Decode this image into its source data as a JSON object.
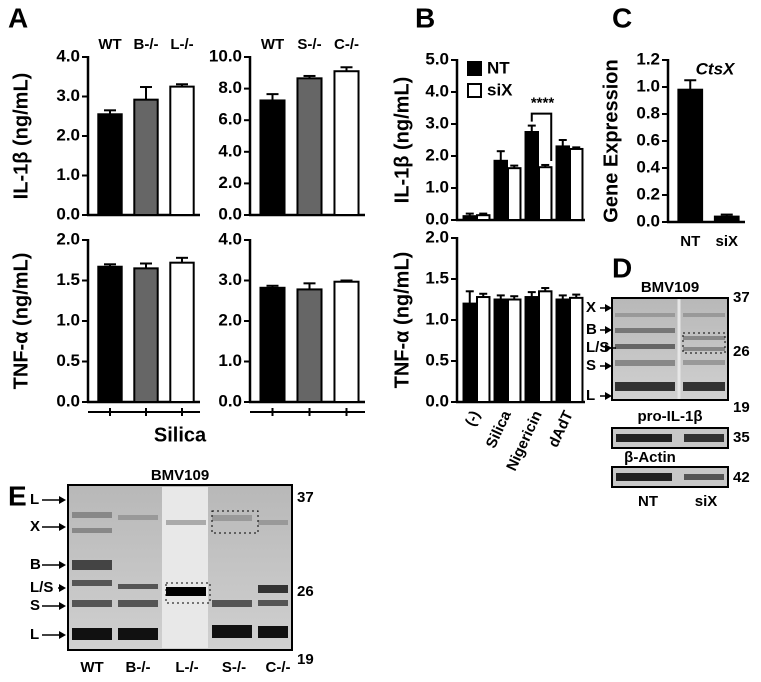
{
  "panels": [
    "A",
    "B",
    "C",
    "D",
    "E"
  ],
  "silica_label": "Silica",
  "chart_data": [
    {
      "type": "bar",
      "ylabel": "IL-1β (ng/mL)",
      "categories": [
        "WT",
        "B-/-",
        "L-/-"
      ],
      "values": [
        2.55,
        2.92,
        3.25
      ],
      "errors": [
        0.1,
        0.32,
        0.06
      ],
      "colors": [
        "#000000",
        "#666666",
        "#ffffff"
      ],
      "ylim": [
        0,
        4
      ],
      "yticks": [
        {
          "value": 0,
          "label": "0.0"
        },
        {
          "value": 1,
          "label": "1.0"
        },
        {
          "value": 2,
          "label": "2.0"
        },
        {
          "value": 3,
          "label": "3.0"
        },
        {
          "value": 4,
          "label": "4.0"
        }
      ]
    },
    {
      "type": "bar",
      "categories": [
        "WT",
        "S-/-",
        "C-/-"
      ],
      "values": [
        7.25,
        8.65,
        9.1
      ],
      "errors": [
        0.4,
        0.15,
        0.25
      ],
      "colors": [
        "#000000",
        "#666666",
        "#ffffff"
      ],
      "ylim": [
        0,
        10
      ],
      "yticks": [
        {
          "value": 0,
          "label": "0.0"
        },
        {
          "value": 2,
          "label": "2.0"
        },
        {
          "value": 4,
          "label": "4.0"
        },
        {
          "value": 6,
          "label": "6.0"
        },
        {
          "value": 8,
          "label": "8.0"
        },
        {
          "value": 10,
          "label": "10.0"
        }
      ]
    },
    {
      "type": "bar",
      "ylabel": "TNF-α (ng/mL)",
      "categories": [
        null,
        null,
        null
      ],
      "values": [
        1.67,
        1.65,
        1.72
      ],
      "errors": [
        0.03,
        0.06,
        0.06
      ],
      "colors": [
        "#000000",
        "#666666",
        "#ffffff"
      ],
      "ylim": [
        0,
        2
      ],
      "yticks": [
        {
          "value": 0,
          "label": "0.0"
        },
        0.5,
        {
          "value": 1,
          "label": "1.0"
        },
        1.5,
        {
          "value": 2,
          "label": "2.0"
        }
      ]
    },
    {
      "type": "bar",
      "categories": [
        null,
        null,
        null
      ],
      "values": [
        2.82,
        2.78,
        2.97
      ],
      "errors": [
        0.05,
        0.15,
        0.03
      ],
      "colors": [
        "#000000",
        "#666666",
        "#ffffff"
      ],
      "ylim": [
        0,
        4
      ],
      "yticks": [
        {
          "value": 0,
          "label": "0.0"
        },
        {
          "value": 1,
          "label": "1.0"
        },
        {
          "value": 2,
          "label": "2.0"
        },
        {
          "value": 3,
          "label": "3.0"
        },
        {
          "value": 4,
          "label": "4.0"
        }
      ]
    },
    {
      "type": "bar",
      "ylabel": "IL-1β (ng/mL)",
      "categories": [
        null,
        null,
        null,
        null
      ],
      "annotation": "****",
      "series": [
        {
          "name": "NT",
          "color": "#000000",
          "values": [
            0.12,
            1.85,
            2.75,
            2.3
          ],
          "errors": [
            0.08,
            0.3,
            0.2,
            0.2
          ]
        },
        {
          "name": "siX",
          "color": "#ffffff",
          "values": [
            0.15,
            1.62,
            1.65,
            2.22
          ],
          "errors": [
            0.05,
            0.08,
            0.07,
            0.05
          ]
        }
      ],
      "ylim": [
        0,
        5
      ],
      "yticks": [
        {
          "value": 0,
          "label": "0.0"
        },
        {
          "value": 1,
          "label": "1.0"
        },
        {
          "value": 2,
          "label": "2.0"
        },
        {
          "value": 3,
          "label": "3.0"
        },
        {
          "value": 4,
          "label": "4.0"
        },
        {
          "value": 5,
          "label": "5.0"
        }
      ]
    },
    {
      "type": "bar",
      "ylabel": "TNF-α (ng/mL)",
      "categories": [
        "(-)",
        "Silica",
        "Nigericin",
        "dAdT"
      ],
      "series": [
        {
          "color": "#000000",
          "values": [
            1.2,
            1.25,
            1.28,
            1.25
          ],
          "errors": [
            0.15,
            0.05,
            0.06,
            0.05
          ]
        },
        {
          "color": "#ffffff",
          "values": [
            1.28,
            1.25,
            1.35,
            1.27
          ],
          "errors": [
            0.04,
            0.04,
            0.04,
            0.04
          ]
        }
      ],
      "ylim": [
        0,
        2
      ],
      "yticks": [
        {
          "value": 0,
          "label": "0.0"
        },
        0.5,
        {
          "value": 1,
          "label": "1.0"
        },
        1.5,
        {
          "value": 2,
          "label": "2.0"
        }
      ]
    },
    {
      "type": "bar",
      "ylabel": "Gene Expression",
      "annotation": "CtsX",
      "categories": [
        "NT",
        "siX"
      ],
      "values": [
        0.98,
        0.04
      ],
      "errors": [
        0.07,
        0.015
      ],
      "color": "#000000",
      "ylim": [
        0,
        1.2
      ],
      "yticks": [
        {
          "value": 0,
          "label": "0.0"
        },
        0.2,
        0.4,
        0.6,
        0.8,
        {
          "value": 1,
          "label": "1.0"
        },
        1.2
      ]
    }
  ],
  "gel_d": {
    "title": "BMV109",
    "bands": [
      "X",
      "B",
      "L/S",
      "S",
      "L"
    ],
    "markers": [
      37,
      26,
      19
    ],
    "blot1": "pro-IL-1β",
    "blot1_marker": 35,
    "blot2": "β-Actin",
    "blot2_marker": 42,
    "lanes": [
      "NT",
      "siX"
    ]
  },
  "gel_e": {
    "title": "BMV109",
    "bands": [
      "L",
      "X",
      "B",
      "L/S",
      "S",
      "L"
    ],
    "markers": [
      37,
      26,
      19
    ],
    "lanes": [
      "WT",
      "B-/-",
      "L-/-",
      "S-/-",
      "C-/-"
    ]
  }
}
